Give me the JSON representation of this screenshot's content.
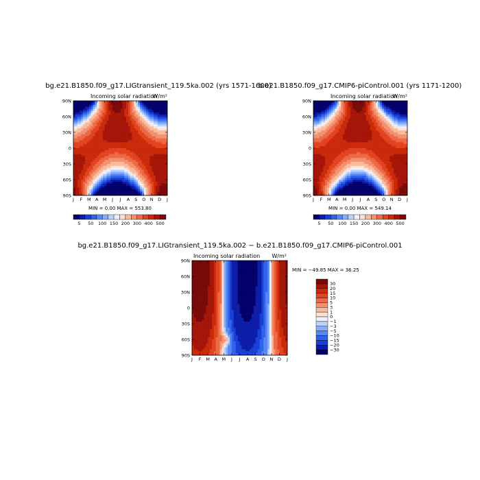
{
  "chart_data": [
    {
      "type": "heatmap",
      "title": "bg.e21.B1850.f09_g17.LIGtransient_119.5ka.002 (yrs 1571-1600)",
      "subtitle_left": "Incoming solar radiation",
      "units": "W/m²",
      "min_max": "MIN =    0.00  MAX = 553.80",
      "x_ticks": [
        "J",
        "F",
        "M",
        "A",
        "M",
        "J",
        "J",
        "A",
        "S",
        "O",
        "N",
        "D",
        "J"
      ],
      "y_ticks": [
        "90N",
        "60N",
        "30N",
        "0",
        "30S",
        "60S",
        "90S"
      ],
      "ylim": [
        -90,
        90
      ],
      "colorbar_labels": [
        "5",
        "50",
        "100",
        "150",
        "200",
        "300",
        "400",
        "500"
      ],
      "colorbar_levels": [
        5,
        25,
        50,
        75,
        100,
        125,
        150,
        175,
        200,
        250,
        300,
        350,
        400,
        450,
        500
      ],
      "colors": [
        "#04006b",
        "#0c1ea8",
        "#1a3fd6",
        "#2f63ec",
        "#5488f5",
        "#86aefa",
        "#bcd2fb",
        "#ebefff",
        "#fde2d0",
        "#f9bb9e",
        "#f39270",
        "#ec6a47",
        "#e2441f",
        "#ca2a0a",
        "#a51508",
        "#7a0a0a"
      ]
    },
    {
      "type": "heatmap",
      "title": "b.e21.B1850.f09_g17.CMIP6-piControl.001 (yrs 1171-1200)",
      "subtitle_left": "Incoming solar radiation",
      "units": "W/m²",
      "min_max": "MIN =    0.00  MAX = 549.14",
      "x_ticks": [
        "J",
        "F",
        "M",
        "A",
        "M",
        "J",
        "J",
        "A",
        "S",
        "O",
        "N",
        "D",
        "J"
      ],
      "y_ticks": [
        "90N",
        "60N",
        "30N",
        "0",
        "30S",
        "60S",
        "90S"
      ],
      "ylim": [
        -90,
        90
      ],
      "colorbar_labels": [
        "5",
        "50",
        "100",
        "150",
        "200",
        "300",
        "400",
        "500"
      ],
      "colorbar_levels": [
        5,
        25,
        50,
        75,
        100,
        125,
        150,
        175,
        200,
        250,
        300,
        350,
        400,
        450,
        500
      ],
      "colors": [
        "#04006b",
        "#0c1ea8",
        "#1a3fd6",
        "#2f63ec",
        "#5488f5",
        "#86aefa",
        "#bcd2fb",
        "#ebefff",
        "#fde2d0",
        "#f9bb9e",
        "#f39270",
        "#ec6a47",
        "#e2441f",
        "#ca2a0a",
        "#a51508",
        "#7a0a0a"
      ]
    },
    {
      "type": "heatmap",
      "title": "bg.e21.B1850.f09_g17.LIGtransient_119.5ka.002 − b.e21.B1850.f09_g17.CMIP6-piControl.001",
      "subtitle_left": "Incoming solar radiation",
      "units": "W/m²",
      "min_max": "MIN = −49.85  MAX =  36.25",
      "x_ticks": [
        "J",
        "F",
        "M",
        "A",
        "M",
        "J",
        "J",
        "A",
        "S",
        "O",
        "N",
        "D",
        "J"
      ],
      "y_ticks": [
        "90N",
        "60N",
        "30N",
        "0",
        "30S",
        "60S",
        "90S"
      ],
      "ylim": [
        -90,
        90
      ],
      "colorbar_labels": [
        "30",
        "20",
        "15",
        "10",
        "5",
        "3",
        "1",
        "0",
        "−1",
        "−3",
        "−5",
        "−10",
        "−15",
        "−20",
        "−30"
      ],
      "colorbar_levels": [
        -30,
        -20,
        -15,
        -10,
        -5,
        -3,
        -1,
        0,
        1,
        3,
        5,
        10,
        15,
        20,
        30
      ],
      "colors": [
        "#04006b",
        "#0c1ea8",
        "#1a3fd6",
        "#2f63ec",
        "#5488f5",
        "#86aefa",
        "#bcd2fb",
        "#ebefff",
        "#fde2d0",
        "#f9bb9e",
        "#f39270",
        "#ec6a47",
        "#e2441f",
        "#ca2a0a",
        "#a51508",
        "#7a0a0a"
      ]
    }
  ]
}
